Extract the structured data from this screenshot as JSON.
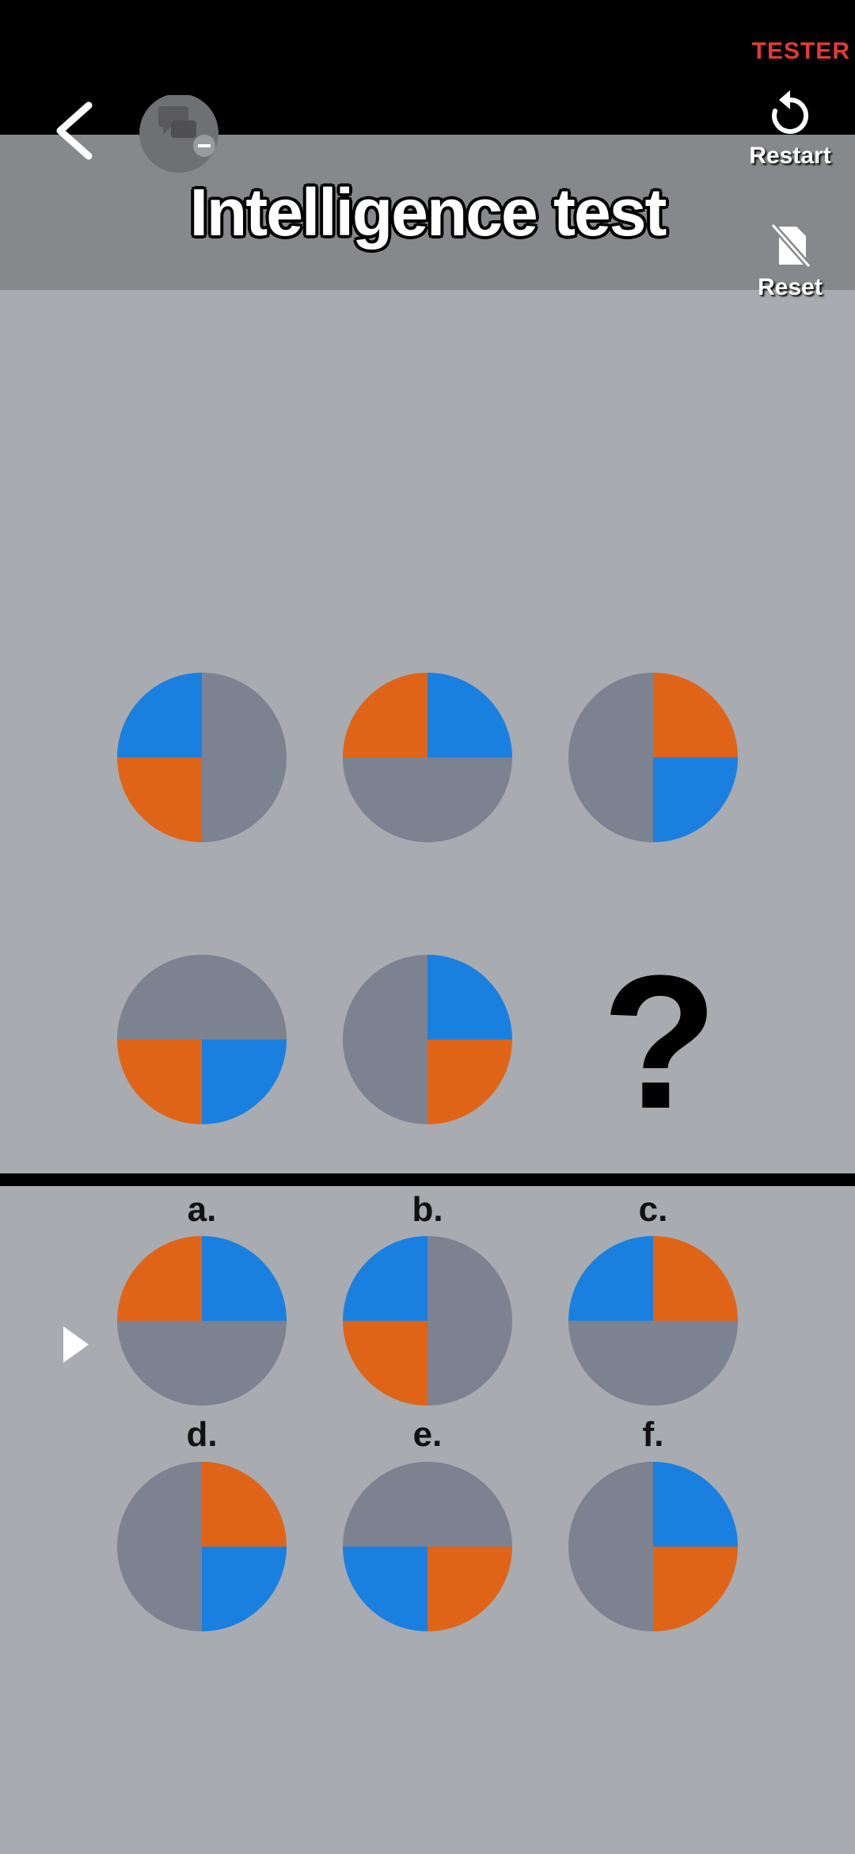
{
  "status_bar": {
    "tester_label": "TESTER"
  },
  "header": {
    "title": "Intelligence test",
    "restart_label": "Restart",
    "reset_label": "Reset"
  },
  "colors": {
    "blue": "#1a80e0",
    "orange": "#e06418",
    "gray": "#7c8290",
    "background": "#a8abb0"
  },
  "puzzle": {
    "question_mark": "?",
    "quadrant_order": [
      "top-left",
      "top-right",
      "bottom-left",
      "bottom-right"
    ],
    "grid": [
      [
        "blue",
        "gray",
        "orange",
        "gray"
      ],
      [
        "orange",
        "blue",
        "gray",
        "gray"
      ],
      [
        "gray",
        "orange",
        "gray",
        "blue"
      ],
      [
        "gray",
        "gray",
        "orange",
        "blue"
      ],
      [
        "gray",
        "blue",
        "gray",
        "orange"
      ]
    ],
    "options": [
      {
        "label": "a.",
        "quadrants": [
          "orange",
          "blue",
          "gray",
          "gray"
        ]
      },
      {
        "label": "b.",
        "quadrants": [
          "blue",
          "gray",
          "orange",
          "gray"
        ]
      },
      {
        "label": "c.",
        "quadrants": [
          "blue",
          "orange",
          "gray",
          "gray"
        ]
      },
      {
        "label": "d.",
        "quadrants": [
          "gray",
          "orange",
          "gray",
          "blue"
        ]
      },
      {
        "label": "e.",
        "quadrants": [
          "gray",
          "gray",
          "blue",
          "orange"
        ]
      },
      {
        "label": "f.",
        "quadrants": [
          "gray",
          "blue",
          "gray",
          "orange"
        ]
      }
    ]
  }
}
